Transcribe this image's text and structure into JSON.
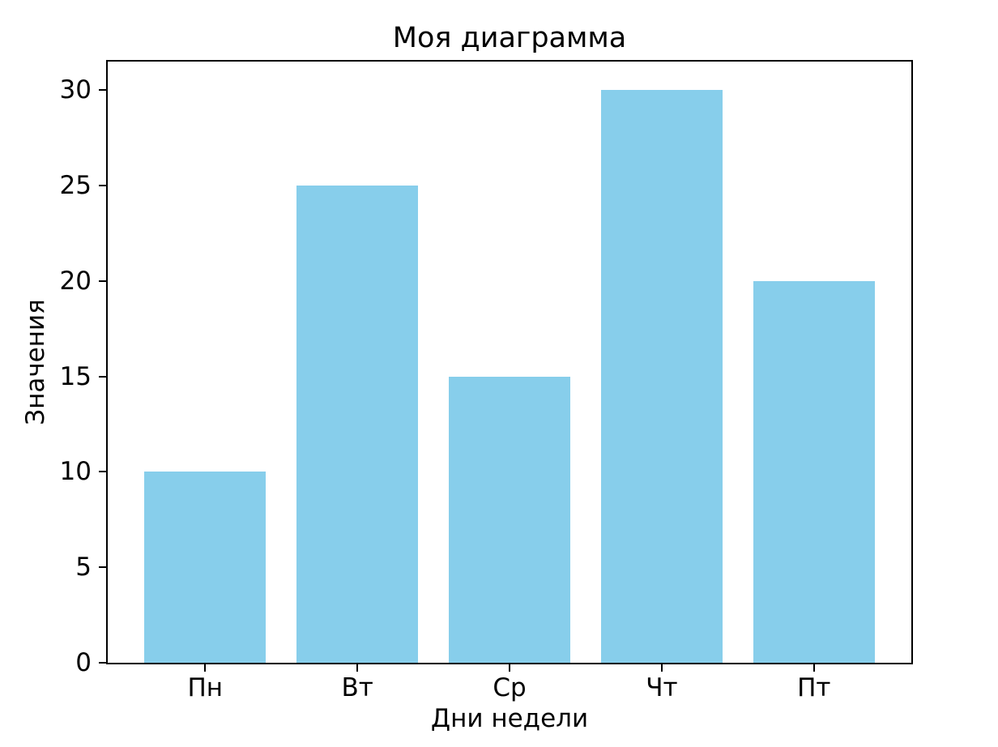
{
  "chart_data": {
    "type": "bar",
    "title": "Моя диаграмма",
    "xlabel": "Дни недели",
    "ylabel": "Значения",
    "categories": [
      "Пн",
      "Вт",
      "Ср",
      "Чт",
      "Пт"
    ],
    "values": [
      10,
      25,
      15,
      30,
      20
    ],
    "yticks": [
      0,
      5,
      10,
      15,
      20,
      25,
      30
    ],
    "ylim": [
      0,
      31.5
    ],
    "xlim": [
      -0.64,
      4.64
    ],
    "bar_width": 0.8,
    "bar_color": "#87CEEB",
    "background_color": "#FFFFFF",
    "text_color": "#000000",
    "axis_color": "#000000",
    "grid": false,
    "legend": "none"
  }
}
